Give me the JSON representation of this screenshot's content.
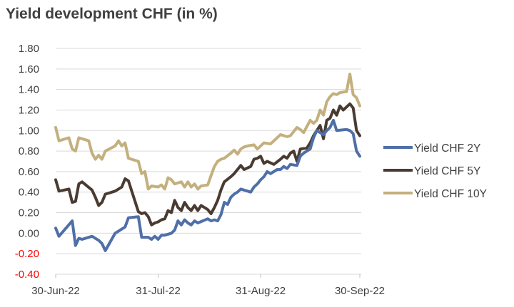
{
  "title": "Yield development CHF (in %)",
  "chart_data": {
    "type": "line",
    "title": "Yield development CHF (in %)",
    "xlabel": "",
    "ylabel": "",
    "ylim": [
      -0.4,
      1.8
    ],
    "y_ticks": [
      "1.80",
      "1.60",
      "1.40",
      "1.20",
      "1.00",
      "0.80",
      "0.60",
      "0.40",
      "0.20",
      "0.00",
      "-0.20",
      "-0.40"
    ],
    "y_tick_values": [
      1.8,
      1.6,
      1.4,
      1.2,
      1.0,
      0.8,
      0.6,
      0.4,
      0.2,
      0.0,
      -0.2,
      -0.4
    ],
    "negative_tick_color": "#ff0000",
    "x_range": [
      "2022-06-30",
      "2022-09-30"
    ],
    "x_ticks": [
      {
        "label": "30-Jun-22",
        "date": "2022-06-30"
      },
      {
        "label": "31-Jul-22",
        "date": "2022-07-31"
      },
      {
        "label": "31-Aug-22",
        "date": "2022-08-31"
      },
      {
        "label": "30-Sep-22",
        "date": "2022-09-30"
      }
    ],
    "grid": "horizontal",
    "legend_position": "right",
    "series": [
      {
        "name": "Yield CHF 2Y",
        "color": "#4f6fa8",
        "points": [
          [
            "2022-06-30",
            0.05
          ],
          [
            "2022-07-01",
            -0.03
          ],
          [
            "2022-07-05",
            0.12
          ],
          [
            "2022-07-06",
            -0.12
          ],
          [
            "2022-07-07",
            -0.05
          ],
          [
            "2022-07-08",
            -0.06
          ],
          [
            "2022-07-11",
            -0.03
          ],
          [
            "2022-07-13",
            -0.07
          ],
          [
            "2022-07-14",
            -0.1
          ],
          [
            "2022-07-15",
            -0.17
          ],
          [
            "2022-07-18",
            0.0
          ],
          [
            "2022-07-19",
            0.02
          ],
          [
            "2022-07-20",
            0.04
          ],
          [
            "2022-07-21",
            0.06
          ],
          [
            "2022-07-22",
            0.15
          ],
          [
            "2022-07-25",
            0.16
          ],
          [
            "2022-07-26",
            -0.04
          ],
          [
            "2022-07-28",
            -0.04
          ],
          [
            "2022-07-29",
            -0.06
          ],
          [
            "2022-07-30",
            -0.03
          ],
          [
            "2022-07-31",
            -0.06
          ],
          [
            "2022-08-01",
            -0.02
          ],
          [
            "2022-08-02",
            -0.02
          ],
          [
            "2022-08-04",
            0.0
          ],
          [
            "2022-08-05",
            0.03
          ],
          [
            "2022-08-06",
            0.12
          ],
          [
            "2022-08-07",
            0.08
          ],
          [
            "2022-08-08",
            0.13
          ],
          [
            "2022-08-09",
            0.1
          ],
          [
            "2022-08-10",
            0.08
          ],
          [
            "2022-08-11",
            0.12
          ],
          [
            "2022-08-12",
            0.1
          ],
          [
            "2022-08-15",
            0.14
          ],
          [
            "2022-08-16",
            0.12
          ],
          [
            "2022-08-17",
            0.13
          ],
          [
            "2022-08-18",
            0.12
          ],
          [
            "2022-08-19",
            0.18
          ],
          [
            "2022-08-20",
            0.3
          ],
          [
            "2022-08-21",
            0.28
          ],
          [
            "2022-08-22",
            0.35
          ],
          [
            "2022-08-23",
            0.38
          ],
          [
            "2022-08-24",
            0.4
          ],
          [
            "2022-08-25",
            0.43
          ],
          [
            "2022-08-26",
            0.42
          ],
          [
            "2022-08-28",
            0.4
          ],
          [
            "2022-08-29",
            0.45
          ],
          [
            "2022-08-30",
            0.48
          ],
          [
            "2022-08-31",
            0.52
          ],
          [
            "2022-09-01",
            0.55
          ],
          [
            "2022-09-02",
            0.6
          ],
          [
            "2022-09-03",
            0.58
          ],
          [
            "2022-09-05",
            0.62
          ],
          [
            "2022-09-06",
            0.62
          ],
          [
            "2022-09-07",
            0.65
          ],
          [
            "2022-09-08",
            0.63
          ],
          [
            "2022-09-09",
            0.67
          ],
          [
            "2022-09-11",
            0.66
          ],
          [
            "2022-09-12",
            0.75
          ],
          [
            "2022-09-13",
            0.78
          ],
          [
            "2022-09-14",
            0.8
          ],
          [
            "2022-09-15",
            0.82
          ],
          [
            "2022-09-16",
            0.93
          ],
          [
            "2022-09-17",
            1.0
          ],
          [
            "2022-09-19",
            0.96
          ],
          [
            "2022-09-20",
            1.0
          ],
          [
            "2022-09-21",
            1.03
          ],
          [
            "2022-09-22",
            1.1
          ],
          [
            "2022-09-23",
            1.0
          ],
          [
            "2022-09-26",
            1.01
          ],
          [
            "2022-09-27",
            1.0
          ],
          [
            "2022-09-28",
            0.97
          ],
          [
            "2022-09-29",
            0.8
          ],
          [
            "2022-09-30",
            0.75
          ]
        ]
      },
      {
        "name": "Yield CHF 5Y",
        "color": "#4a3b32",
        "points": [
          [
            "2022-06-30",
            0.52
          ],
          [
            "2022-07-01",
            0.41
          ],
          [
            "2022-07-04",
            0.43
          ],
          [
            "2022-07-05",
            0.3
          ],
          [
            "2022-07-06",
            0.31
          ],
          [
            "2022-07-07",
            0.48
          ],
          [
            "2022-07-08",
            0.5
          ],
          [
            "2022-07-11",
            0.42
          ],
          [
            "2022-07-12",
            0.35
          ],
          [
            "2022-07-13",
            0.27
          ],
          [
            "2022-07-14",
            0.3
          ],
          [
            "2022-07-15",
            0.38
          ],
          [
            "2022-07-18",
            0.41
          ],
          [
            "2022-07-19",
            0.43
          ],
          [
            "2022-07-20",
            0.45
          ],
          [
            "2022-07-21",
            0.53
          ],
          [
            "2022-07-22",
            0.51
          ],
          [
            "2022-07-25",
            0.21
          ],
          [
            "2022-07-26",
            0.19
          ],
          [
            "2022-07-27",
            0.2
          ],
          [
            "2022-07-28",
            0.16
          ],
          [
            "2022-07-29",
            0.08
          ],
          [
            "2022-07-30",
            0.1
          ],
          [
            "2022-07-31",
            0.11
          ],
          [
            "2022-08-01",
            0.13
          ],
          [
            "2022-08-02",
            0.14
          ],
          [
            "2022-08-03",
            0.22
          ],
          [
            "2022-08-04",
            0.2
          ],
          [
            "2022-08-05",
            0.32
          ],
          [
            "2022-08-06",
            0.25
          ],
          [
            "2022-08-07",
            0.22
          ],
          [
            "2022-08-08",
            0.3
          ],
          [
            "2022-08-09",
            0.25
          ],
          [
            "2022-08-10",
            0.22
          ],
          [
            "2022-08-11",
            0.27
          ],
          [
            "2022-08-12",
            0.22
          ],
          [
            "2022-08-13",
            0.27
          ],
          [
            "2022-08-14",
            0.25
          ],
          [
            "2022-08-15",
            0.23
          ],
          [
            "2022-08-16",
            0.19
          ],
          [
            "2022-08-17",
            0.25
          ],
          [
            "2022-08-18",
            0.32
          ],
          [
            "2022-08-19",
            0.42
          ],
          [
            "2022-08-20",
            0.5
          ],
          [
            "2022-08-22",
            0.55
          ],
          [
            "2022-08-23",
            0.58
          ],
          [
            "2022-08-24",
            0.62
          ],
          [
            "2022-08-25",
            0.66
          ],
          [
            "2022-08-26",
            0.62
          ],
          [
            "2022-08-28",
            0.65
          ],
          [
            "2022-08-29",
            0.72
          ],
          [
            "2022-08-30",
            0.73
          ],
          [
            "2022-08-31",
            0.75
          ],
          [
            "2022-09-01",
            0.68
          ],
          [
            "2022-09-02",
            0.7
          ],
          [
            "2022-09-04",
            0.67
          ],
          [
            "2022-09-06",
            0.72
          ],
          [
            "2022-09-07",
            0.75
          ],
          [
            "2022-09-08",
            0.73
          ],
          [
            "2022-09-09",
            0.78
          ],
          [
            "2022-09-10",
            0.8
          ],
          [
            "2022-09-11",
            0.7
          ],
          [
            "2022-09-12",
            0.82
          ],
          [
            "2022-09-14",
            0.83
          ],
          [
            "2022-09-15",
            0.88
          ],
          [
            "2022-09-16",
            0.95
          ],
          [
            "2022-09-18",
            1.05
          ],
          [
            "2022-09-19",
            0.92
          ],
          [
            "2022-09-20",
            1.1
          ],
          [
            "2022-09-21",
            1.12
          ],
          [
            "2022-09-22",
            1.2
          ],
          [
            "2022-09-23",
            1.15
          ],
          [
            "2022-09-24",
            1.24
          ],
          [
            "2022-09-25",
            1.2
          ],
          [
            "2022-09-27",
            1.26
          ],
          [
            "2022-09-28",
            1.22
          ],
          [
            "2022-09-29",
            1.0
          ],
          [
            "2022-09-30",
            0.95
          ]
        ]
      },
      {
        "name": "Yield CHF 10Y",
        "color": "#c4b07e",
        "points": [
          [
            "2022-06-30",
            1.03
          ],
          [
            "2022-07-01",
            0.9
          ],
          [
            "2022-07-04",
            0.93
          ],
          [
            "2022-07-05",
            0.82
          ],
          [
            "2022-07-06",
            0.8
          ],
          [
            "2022-07-07",
            0.93
          ],
          [
            "2022-07-08",
            0.92
          ],
          [
            "2022-07-10",
            0.9
          ],
          [
            "2022-07-11",
            0.78
          ],
          [
            "2022-07-12",
            0.72
          ],
          [
            "2022-07-13",
            0.76
          ],
          [
            "2022-07-14",
            0.72
          ],
          [
            "2022-07-15",
            0.8
          ],
          [
            "2022-07-18",
            0.85
          ],
          [
            "2022-07-19",
            0.9
          ],
          [
            "2022-07-20",
            0.85
          ],
          [
            "2022-07-21",
            0.88
          ],
          [
            "2022-07-22",
            0.73
          ],
          [
            "2022-07-25",
            0.7
          ],
          [
            "2022-07-26",
            0.58
          ],
          [
            "2022-07-27",
            0.6
          ],
          [
            "2022-07-28",
            0.43
          ],
          [
            "2022-07-29",
            0.46
          ],
          [
            "2022-07-31",
            0.45
          ],
          [
            "2022-08-01",
            0.47
          ],
          [
            "2022-08-02",
            0.43
          ],
          [
            "2022-08-03",
            0.54
          ],
          [
            "2022-08-04",
            0.52
          ],
          [
            "2022-08-05",
            0.48
          ],
          [
            "2022-08-07",
            0.5
          ],
          [
            "2022-08-08",
            0.45
          ],
          [
            "2022-08-09",
            0.5
          ],
          [
            "2022-08-10",
            0.45
          ],
          [
            "2022-08-11",
            0.48
          ],
          [
            "2022-08-12",
            0.43
          ],
          [
            "2022-08-13",
            0.46
          ],
          [
            "2022-08-15",
            0.47
          ],
          [
            "2022-08-16",
            0.56
          ],
          [
            "2022-08-17",
            0.65
          ],
          [
            "2022-08-18",
            0.7
          ],
          [
            "2022-08-19",
            0.72
          ],
          [
            "2022-08-20",
            0.73
          ],
          [
            "2022-08-22",
            0.78
          ],
          [
            "2022-08-23",
            0.81
          ],
          [
            "2022-08-24",
            0.77
          ],
          [
            "2022-08-25",
            0.82
          ],
          [
            "2022-08-26",
            0.84
          ],
          [
            "2022-08-27",
            0.85
          ],
          [
            "2022-08-29",
            0.86
          ],
          [
            "2022-08-30",
            0.82
          ],
          [
            "2022-08-31",
            0.85
          ],
          [
            "2022-09-01",
            0.88
          ],
          [
            "2022-09-03",
            0.87
          ],
          [
            "2022-09-05",
            0.93
          ],
          [
            "2022-09-06",
            0.96
          ],
          [
            "2022-09-08",
            0.94
          ],
          [
            "2022-09-09",
            0.95
          ],
          [
            "2022-09-11",
            1.03
          ],
          [
            "2022-09-12",
            1.01
          ],
          [
            "2022-09-13",
            0.98
          ],
          [
            "2022-09-15",
            1.1
          ],
          [
            "2022-09-16",
            1.07
          ],
          [
            "2022-09-17",
            1.1
          ],
          [
            "2022-09-18",
            1.2
          ],
          [
            "2022-09-19",
            1.15
          ],
          [
            "2022-09-20",
            1.28
          ],
          [
            "2022-09-21",
            1.33
          ],
          [
            "2022-09-22",
            1.36
          ],
          [
            "2022-09-23",
            1.35
          ],
          [
            "2022-09-24",
            1.37
          ],
          [
            "2022-09-26",
            1.38
          ],
          [
            "2022-09-27",
            1.55
          ],
          [
            "2022-09-28",
            1.35
          ],
          [
            "2022-09-29",
            1.32
          ],
          [
            "2022-09-30",
            1.24
          ]
        ]
      }
    ]
  }
}
